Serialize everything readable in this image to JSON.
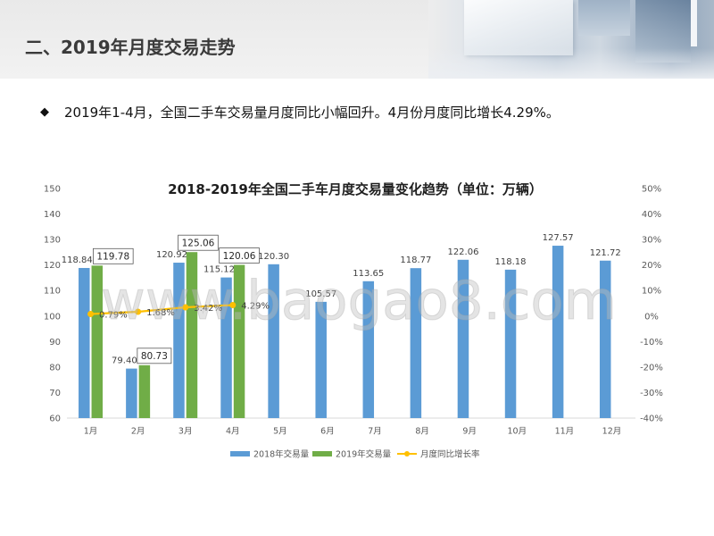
{
  "slide": {
    "title": "二、2019年月度交易走势",
    "bullet_marker": "◆",
    "bullet_text": "2019年1-4月，全国二手车交易量月度同比小幅回升。4月份月度同比增长4.29%。"
  },
  "watermark": "www.baogao8.com",
  "colors": {
    "series_2018": "#5B9BD5",
    "series_2019": "#70AD47",
    "growth_line": "#FFC000"
  },
  "chart_data": {
    "type": "bar",
    "title": "2018-2019年全国二手车月度交易量变化趋势（单位：万辆）",
    "categories": [
      "1月",
      "2月",
      "3月",
      "4月",
      "5月",
      "6月",
      "7月",
      "8月",
      "9月",
      "10月",
      "11月",
      "12月"
    ],
    "series": [
      {
        "name": "2018年交易量",
        "type": "bar",
        "axis": "left",
        "values": [
          118.84,
          79.4,
          120.92,
          115.12,
          120.3,
          105.57,
          113.65,
          118.77,
          122.06,
          118.18,
          127.57,
          121.72
        ]
      },
      {
        "name": "2019年交易量",
        "type": "bar",
        "axis": "left",
        "values": [
          119.78,
          80.73,
          125.06,
          120.06,
          null,
          null,
          null,
          null,
          null,
          null,
          null,
          null
        ]
      },
      {
        "name": "月度同比增长率",
        "type": "line",
        "axis": "right",
        "values": [
          0.79,
          1.68,
          3.42,
          4.29,
          null,
          null,
          null,
          null,
          null,
          null,
          null,
          null
        ]
      }
    ],
    "y_left": {
      "range": [
        60,
        150
      ],
      "ticks": [
        "150",
        "140",
        "130",
        "120",
        "110",
        "100",
        "90",
        "80",
        "70",
        "60"
      ]
    },
    "y_right": {
      "range": [
        -40,
        50
      ],
      "ticks": [
        "50%",
        "40%",
        "30%",
        "20%",
        "10%",
        "0%",
        "-10%",
        "-20%",
        "-30%",
        "-40%"
      ]
    },
    "grid": false,
    "legend_position": "bottom"
  }
}
